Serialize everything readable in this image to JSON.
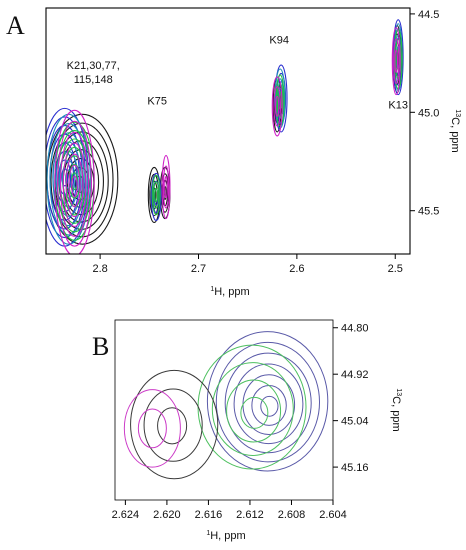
{
  "panels": [
    {
      "label": "A",
      "chart_data": {
        "type": "contour",
        "xlabel_sup": "1",
        "xlabel_main": "H, ppm",
        "ylabel_sup": "13",
        "ylabel_main": "C, ppm",
        "xlim": [
          2.855,
          2.485
        ],
        "ylim": [
          44.47,
          45.72
        ],
        "x_ticks": [
          2.8,
          2.7,
          2.6,
          2.5
        ],
        "y_ticks": [
          44.5,
          45.0,
          45.5
        ],
        "x_tick_labels": [
          "2.8",
          "2.7",
          "2.6",
          "2.5"
        ],
        "y_tick_labels": [
          "44.5",
          "45.0",
          "45.5"
        ],
        "series_colors": [
          "#1a1a1a",
          "#2a2fd0",
          "#1e8fb8",
          "#20c040",
          "#d020c8"
        ],
        "peaks": [
          {
            "label_lines": [
              "K21,30,77,",
              "115,148"
            ],
            "label_x": 2.807,
            "label_y": 44.78,
            "contours": [
              {
                "color": "#1a1a1a",
                "cx": 2.818,
                "cy": 45.34,
                "rx": 0.036,
                "ry": 0.33,
                "levels": 8,
                "dx": 0.003,
                "dy": 0.03
              },
              {
                "color": "#2a2fd0",
                "cx": 2.836,
                "cy": 45.33,
                "rx": 0.024,
                "ry": 0.35,
                "levels": 8,
                "dx": 0.0,
                "dy": 0.0
              },
              {
                "color": "#1e8fb8",
                "cx": 2.832,
                "cy": 45.34,
                "rx": 0.022,
                "ry": 0.33,
                "levels": 7,
                "dx": 0.0,
                "dy": 0.0
              },
              {
                "color": "#20c040",
                "cx": 2.826,
                "cy": 45.35,
                "rx": 0.02,
                "ry": 0.3,
                "levels": 7,
                "dx": 0.0,
                "dy": 0.0
              },
              {
                "color": "#d020c8",
                "cx": 2.826,
                "cy": 45.36,
                "rx": 0.02,
                "ry": 0.37,
                "levels": 7,
                "dx": 0.0,
                "dy": 0.02
              }
            ]
          },
          {
            "label_lines": [
              "K75"
            ],
            "label_x": 2.742,
            "label_y": 44.96,
            "contours": [
              {
                "color": "#1a1a1a",
                "cx": 2.745,
                "cy": 45.42,
                "rx": 0.006,
                "ry": 0.14,
                "levels": 4,
                "dx": 0.0,
                "dy": 0.0
              },
              {
                "color": "#1a1a1a",
                "cx": 2.734,
                "cy": 45.41,
                "rx": 0.005,
                "ry": 0.13,
                "levels": 4,
                "dx": 0.0,
                "dy": 0.0
              },
              {
                "color": "#2a2fd0",
                "cx": 2.743,
                "cy": 45.43,
                "rx": 0.005,
                "ry": 0.12,
                "levels": 3,
                "dx": 0.0,
                "dy": 0.0
              },
              {
                "color": "#20c040",
                "cx": 2.743,
                "cy": 45.42,
                "rx": 0.004,
                "ry": 0.1,
                "levels": 3,
                "dx": 0.0,
                "dy": 0.0
              },
              {
                "color": "#d020c8",
                "cx": 2.733,
                "cy": 45.38,
                "rx": 0.004,
                "ry": 0.16,
                "levels": 3,
                "dx": 0.0,
                "dy": 0.0
              }
            ]
          },
          {
            "label_lines": [
              "K94"
            ],
            "label_x": 2.618,
            "label_y": 44.65,
            "contours": [
              {
                "color": "#1a1a1a",
                "cx": 2.62,
                "cy": 44.96,
                "rx": 0.004,
                "ry": 0.14,
                "levels": 3,
                "dx": 0.0,
                "dy": 0.0
              },
              {
                "color": "#2a2fd0",
                "cx": 2.616,
                "cy": 44.93,
                "rx": 0.006,
                "ry": 0.17,
                "levels": 4,
                "dx": 0.0,
                "dy": 0.0
              },
              {
                "color": "#1e8fb8",
                "cx": 2.617,
                "cy": 44.93,
                "rx": 0.005,
                "ry": 0.15,
                "levels": 3,
                "dx": 0.0,
                "dy": 0.0
              },
              {
                "color": "#20c040",
                "cx": 2.617,
                "cy": 44.94,
                "rx": 0.004,
                "ry": 0.13,
                "levels": 3,
                "dx": 0.0,
                "dy": 0.0
              },
              {
                "color": "#d020c8",
                "cx": 2.62,
                "cy": 44.97,
                "rx": 0.005,
                "ry": 0.15,
                "levels": 3,
                "dx": 0.0,
                "dy": 0.0
              }
            ]
          },
          {
            "label_lines": [
              "K13"
            ],
            "label_x": 2.497,
            "label_y": 44.98,
            "contours": [
              {
                "color": "#1a1a1a",
                "cx": 2.498,
                "cy": 44.73,
                "rx": 0.004,
                "ry": 0.17,
                "levels": 4,
                "dx": 0.0,
                "dy": 0.0
              },
              {
                "color": "#2a2fd0",
                "cx": 2.497,
                "cy": 44.72,
                "rx": 0.005,
                "ry": 0.19,
                "levels": 4,
                "dx": 0.0,
                "dy": 0.0
              },
              {
                "color": "#1e8fb8",
                "cx": 2.497,
                "cy": 44.72,
                "rx": 0.004,
                "ry": 0.17,
                "levels": 3,
                "dx": 0.0,
                "dy": 0.0
              },
              {
                "color": "#20c040",
                "cx": 2.497,
                "cy": 44.73,
                "rx": 0.004,
                "ry": 0.15,
                "levels": 3,
                "dx": 0.0,
                "dy": 0.0
              },
              {
                "color": "#d020c8",
                "cx": 2.499,
                "cy": 44.74,
                "rx": 0.004,
                "ry": 0.17,
                "levels": 3,
                "dx": 0.0,
                "dy": 0.0
              }
            ]
          }
        ]
      }
    },
    {
      "label": "B",
      "chart_data": {
        "type": "contour",
        "xlabel_sup": "1",
        "xlabel_main": "H, ppm",
        "ylabel_sup": "13",
        "ylabel_main": "C, ppm",
        "xlim": [
          2.625,
          2.604
        ],
        "ylim": [
          44.78,
          45.245
        ],
        "x_ticks": [
          2.624,
          2.62,
          2.616,
          2.612,
          2.608,
          2.604
        ],
        "y_ticks": [
          44.8,
          44.92,
          45.04,
          45.16
        ],
        "x_tick_labels": [
          "2.624",
          "2.620",
          "2.616",
          "2.612",
          "2.608",
          "2.604"
        ],
        "y_tick_labels": [
          "44.80",
          "44.92",
          "45.04",
          "45.16"
        ],
        "peaks": [
          {
            "label_lines": [],
            "label_x": 0,
            "label_y": 0,
            "contours": [
              {
                "color": "#5a5aa8",
                "cx": 2.6103,
                "cy": 44.99,
                "rx": 0.0058,
                "ry": 0.18,
                "levels": 7,
                "dx": -0.0002,
                "dy": 0.015
              },
              {
                "color": "#4ec060",
                "cx": 2.6118,
                "cy": 45.005,
                "rx": 0.0052,
                "ry": 0.16,
                "levels": 4,
                "dx": -0.0003,
                "dy": 0.02
              },
              {
                "color": "#3a3a3a",
                "cx": 2.6193,
                "cy": 45.05,
                "rx": 0.0042,
                "ry": 0.14,
                "levels": 3,
                "dx": 0.0003,
                "dy": 0.005
              },
              {
                "color": "#cc3cc8",
                "cx": 2.6214,
                "cy": 45.06,
                "rx": 0.0027,
                "ry": 0.1,
                "levels": 2,
                "dx": 0.0,
                "dy": 0.0
              }
            ]
          }
        ]
      }
    }
  ]
}
